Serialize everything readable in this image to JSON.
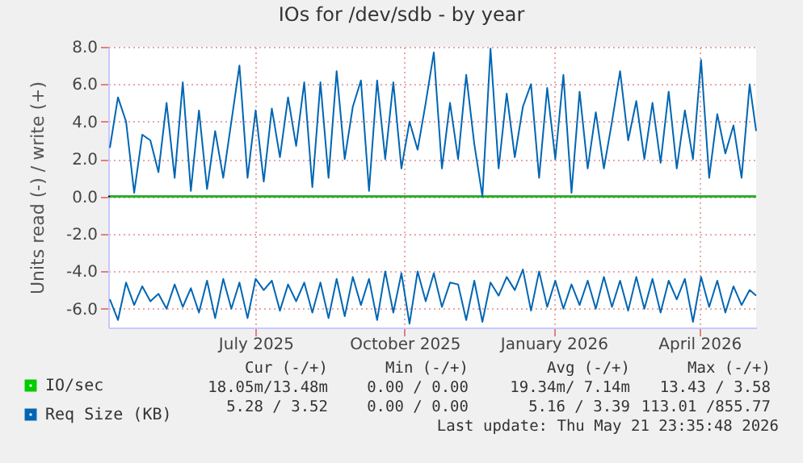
{
  "chart_data": {
    "type": "line",
    "title": "IOs for /dev/sdb - by year",
    "ylabel": "Units read (-) / write (+)",
    "x": [
      "2025-04-17",
      "2025-04-22",
      "2025-04-27",
      "2025-05-02",
      "2025-05-07",
      "2025-05-12",
      "2025-05-17",
      "2025-05-22",
      "2025-05-27",
      "2025-06-01",
      "2025-06-06",
      "2025-06-11",
      "2025-06-16",
      "2025-06-21",
      "2025-06-26",
      "2025-07-01",
      "2025-07-06",
      "2025-07-11",
      "2025-07-16",
      "2025-07-21",
      "2025-07-26",
      "2025-07-31",
      "2025-08-05",
      "2025-08-10",
      "2025-08-15",
      "2025-08-20",
      "2025-08-25",
      "2025-08-30",
      "2025-09-04",
      "2025-09-09",
      "2025-09-14",
      "2025-09-19",
      "2025-09-24",
      "2025-09-29",
      "2025-10-04",
      "2025-10-09",
      "2025-10-14",
      "2025-10-19",
      "2025-10-24",
      "2025-10-29",
      "2025-11-03",
      "2025-11-08",
      "2025-11-13",
      "2025-11-18",
      "2025-11-23",
      "2025-11-28",
      "2025-12-03",
      "2025-12-08",
      "2025-12-13",
      "2025-12-18",
      "2025-12-23",
      "2025-12-28",
      "2026-01-02",
      "2026-01-07",
      "2026-01-12",
      "2026-01-17",
      "2026-01-22",
      "2026-01-27",
      "2026-02-01",
      "2026-02-06",
      "2026-02-11",
      "2026-02-16",
      "2026-02-21",
      "2026-02-26",
      "2026-03-03",
      "2026-03-08",
      "2026-03-13",
      "2026-03-18",
      "2026-03-23",
      "2026-03-28",
      "2026-04-02",
      "2026-04-07",
      "2026-04-12",
      "2026-04-17",
      "2026-04-22",
      "2026-04-27",
      "2026-05-02",
      "2026-05-07",
      "2026-05-12",
      "2026-05-17",
      "2026-05-21"
    ],
    "series": [
      {
        "name": "IO/sec",
        "color": "#00cc00",
        "values": [
          0,
          0,
          0,
          0,
          0,
          0,
          0,
          0,
          0,
          0,
          0,
          0,
          0,
          0,
          0,
          0,
          0,
          0,
          0,
          0,
          0,
          0,
          0,
          0,
          0,
          0,
          0,
          0,
          0,
          0,
          0,
          0,
          0,
          0,
          0,
          0,
          0,
          0,
          0,
          0,
          0,
          0,
          0,
          0,
          0,
          0,
          0,
          0,
          0,
          0,
          0,
          0,
          0,
          0,
          0,
          0,
          0,
          0,
          0,
          0,
          0,
          0,
          0,
          0,
          0,
          0,
          0,
          0,
          0,
          0,
          0,
          0,
          0,
          0,
          0,
          0,
          0,
          0,
          0,
          0,
          0
        ]
      },
      {
        "name": "Req Size (KB)",
        "color": "#0066b3",
        "values": [
          2.6,
          5.3,
          4.0,
          0.2,
          3.3,
          3.0,
          1.3,
          5.0,
          1.0,
          6.1,
          0.3,
          4.6,
          0.4,
          3.5,
          1.0,
          4.0,
          7.0,
          1.0,
          4.6,
          0.8,
          4.7,
          2.1,
          5.3,
          2.7,
          6.1,
          0.5,
          6.1,
          1.0,
          6.7,
          2.0,
          4.8,
          6.2,
          0.3,
          6.2,
          2.0,
          6.1,
          1.5,
          4.0,
          2.5,
          5.0,
          7.7,
          1.5,
          5.0,
          2.0,
          6.5,
          2.8,
          0.0,
          7.9,
          1.5,
          5.5,
          2.1,
          4.8,
          6.0,
          1.0,
          5.8,
          2.0,
          6.5,
          0.2,
          5.6,
          1.5,
          4.5,
          1.5,
          4.0,
          6.7,
          3.0,
          5.1,
          2.0,
          5.0,
          1.8,
          5.6,
          1.5,
          4.6,
          2.0,
          7.3,
          1.0,
          4.4,
          2.3,
          3.8,
          1.0,
          6.0,
          3.5
        ]
      },
      {
        "color": "#0066b3",
        "values": [
          -5.5,
          -6.6,
          -4.6,
          -5.8,
          -4.8,
          -5.6,
          -5.2,
          -6.0,
          -4.7,
          -5.9,
          -4.9,
          -6.2,
          -4.5,
          -6.5,
          -4.4,
          -6.0,
          -4.6,
          -6.5,
          -4.4,
          -5.0,
          -4.5,
          -6.1,
          -4.7,
          -5.6,
          -4.6,
          -6.2,
          -4.6,
          -6.5,
          -4.4,
          -6.4,
          -4.3,
          -5.8,
          -4.4,
          -6.6,
          -4.0,
          -6.2,
          -4.1,
          -6.8,
          -4.0,
          -5.6,
          -4.1,
          -5.9,
          -4.6,
          -4.7,
          -6.6,
          -4.5,
          -6.7,
          -4.6,
          -5.3,
          -4.3,
          -5.0,
          -3.9,
          -6.1,
          -4.0,
          -5.9,
          -4.5,
          -6.0,
          -4.7,
          -5.8,
          -4.5,
          -6.0,
          -4.3,
          -5.9,
          -4.5,
          -6.1,
          -4.3,
          -6.0,
          -4.4,
          -6.2,
          -4.5,
          -5.5,
          -4.4,
          -6.7,
          -4.3,
          -5.9,
          -4.5,
          -6.2,
          -4.8,
          -5.8,
          -5.0,
          -5.3
        ]
      }
    ],
    "xlim": [
      "2025-04-16",
      "2026-05-21"
    ],
    "xticks": [
      {
        "value": "2025-07-16",
        "label": "July 2025"
      },
      {
        "value": "2025-10-16",
        "label": "October 2025"
      },
      {
        "value": "2026-01-16",
        "label": "January 2026"
      },
      {
        "value": "2026-04-16",
        "label": "April 2026"
      }
    ],
    "ylim": [
      -7,
      8
    ],
    "yticks": [
      {
        "value": -6,
        "label": "-6.0"
      },
      {
        "value": -4,
        "label": "-4.0"
      },
      {
        "value": -2,
        "label": "-2.0"
      },
      {
        "value": 0,
        "label": "0.0"
      },
      {
        "value": 2,
        "label": "2.0"
      },
      {
        "value": 4,
        "label": "4.0"
      },
      {
        "value": 6,
        "label": "6.0"
      },
      {
        "value": 8,
        "label": "8.0"
      }
    ],
    "ref_lines": [
      {
        "axis": "y",
        "value": 0,
        "color": "#000000"
      }
    ],
    "grid": true,
    "legend": "bottom left",
    "marker": "none",
    "line_style": "solid",
    "annotations": [
      "Cur (-/+)",
      "Min (-/+)",
      "Avg (-/+)",
      "Max (-/+)",
      "18.05m/13.48m",
      "0.00 / 0.00",
      "19.34m/ 7.14m",
      "13.43 / 3.58",
      "5.28 / 3.52",
      "0.00 / 0.00",
      "5.16 / 3.39",
      "113.01 /855.77",
      "Last update: Thu May 21 23:35:48 2026"
    ]
  }
}
